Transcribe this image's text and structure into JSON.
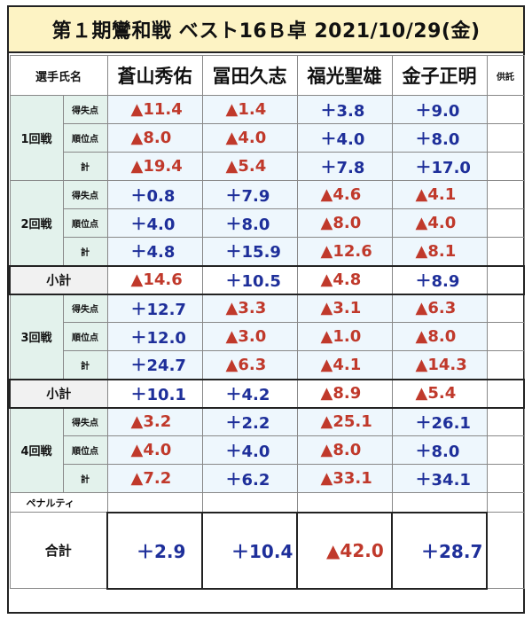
{
  "title": "第１期鸞和戦 ベスト16Ｂ卓 2021/10/29(金)",
  "header": {
    "label": "選手氏名",
    "players": [
      "蒼山秀佑",
      "冨田久志",
      "福光聖雄",
      "金子正明"
    ],
    "deposit": "供託"
  },
  "labels": {
    "tokushitten": "得失点",
    "juniten": "順位点",
    "kei": "計",
    "shoukei": "小計",
    "penalty": "ペナルティ",
    "goukei": "合計"
  },
  "rounds": [
    {
      "name": "1回戦",
      "tokushitten": [
        "▲11.4",
        "▲1.4",
        "＋3.8",
        "＋9.0"
      ],
      "juniten": [
        "▲8.0",
        "▲4.0",
        "＋4.0",
        "＋8.0"
      ],
      "kei": [
        "▲19.4",
        "▲5.4",
        "＋7.8",
        "＋17.0"
      ]
    },
    {
      "name": "2回戦",
      "tokushitten": [
        "＋0.8",
        "＋7.9",
        "▲4.6",
        "▲4.1"
      ],
      "juniten": [
        "＋4.0",
        "＋8.0",
        "▲8.0",
        "▲4.0"
      ],
      "kei": [
        "＋4.8",
        "＋15.9",
        "▲12.6",
        "▲8.1"
      ]
    },
    {
      "name": "3回戦",
      "tokushitten": [
        "＋12.7",
        "▲3.3",
        "▲3.1",
        "▲6.3"
      ],
      "juniten": [
        "＋12.0",
        "▲3.0",
        "▲1.0",
        "▲8.0"
      ],
      "kei": [
        "＋24.7",
        "▲6.3",
        "▲4.1",
        "▲14.3"
      ]
    },
    {
      "name": "4回戦",
      "tokushitten": [
        "▲3.2",
        "＋2.2",
        "▲25.1",
        "＋26.1"
      ],
      "juniten": [
        "▲4.0",
        "＋4.0",
        "▲8.0",
        "＋8.0"
      ],
      "kei": [
        "▲7.2",
        "＋6.2",
        "▲33.1",
        "＋34.1"
      ]
    }
  ],
  "subtotals": [
    [
      "▲14.6",
      "＋10.5",
      "▲4.8",
      "＋8.9"
    ],
    [
      "＋10.1",
      "＋4.2",
      "▲8.9",
      "▲5.4"
    ]
  ],
  "totals": [
    "＋2.9",
    "＋10.4",
    "▲42.0",
    "＋28.7"
  ],
  "colors": {
    "positive": "#1e2f9a",
    "negative": "#c0392b",
    "title_bg": "#fdf3c4",
    "label_bg": "#e3f2ec",
    "value_bg": "#eef7fd"
  }
}
